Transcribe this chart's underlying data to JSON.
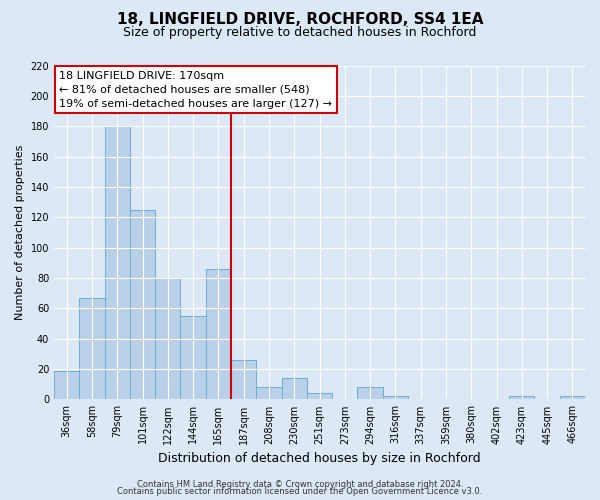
{
  "title": "18, LINGFIELD DRIVE, ROCHFORD, SS4 1EA",
  "subtitle": "Size of property relative to detached houses in Rochford",
  "xlabel": "Distribution of detached houses by size in Rochford",
  "ylabel": "Number of detached properties",
  "bar_labels": [
    "36sqm",
    "58sqm",
    "79sqm",
    "101sqm",
    "122sqm",
    "144sqm",
    "165sqm",
    "187sqm",
    "208sqm",
    "230sqm",
    "251sqm",
    "273sqm",
    "294sqm",
    "316sqm",
    "337sqm",
    "359sqm",
    "380sqm",
    "402sqm",
    "423sqm",
    "445sqm",
    "466sqm"
  ],
  "bar_values": [
    19,
    67,
    180,
    125,
    80,
    55,
    86,
    26,
    8,
    14,
    4,
    0,
    8,
    2,
    0,
    0,
    0,
    0,
    2,
    0,
    2
  ],
  "bar_color": "#b8d0e8",
  "bar_edge_color": "#6baed6",
  "vline_x_index": 6,
  "vline_color": "#cc0000",
  "ylim": [
    0,
    220
  ],
  "yticks": [
    0,
    20,
    40,
    60,
    80,
    100,
    120,
    140,
    160,
    180,
    200,
    220
  ],
  "annotation_title": "18 LINGFIELD DRIVE: 170sqm",
  "annotation_line1": "← 81% of detached houses are smaller (548)",
  "annotation_line2": "19% of semi-detached houses are larger (127) →",
  "annotation_box_facecolor": "#ffffff",
  "annotation_box_edgecolor": "#cc0000",
  "footer1": "Contains HM Land Registry data © Crown copyright and database right 2024.",
  "footer2": "Contains public sector information licensed under the Open Government Licence v3.0.",
  "background_color": "#dce8f5",
  "grid_color": "#ffffff",
  "title_fontsize": 11,
  "subtitle_fontsize": 9,
  "ylabel_fontsize": 8,
  "xlabel_fontsize": 9,
  "tick_fontsize": 7,
  "annotation_fontsize": 8,
  "footer_fontsize": 6
}
